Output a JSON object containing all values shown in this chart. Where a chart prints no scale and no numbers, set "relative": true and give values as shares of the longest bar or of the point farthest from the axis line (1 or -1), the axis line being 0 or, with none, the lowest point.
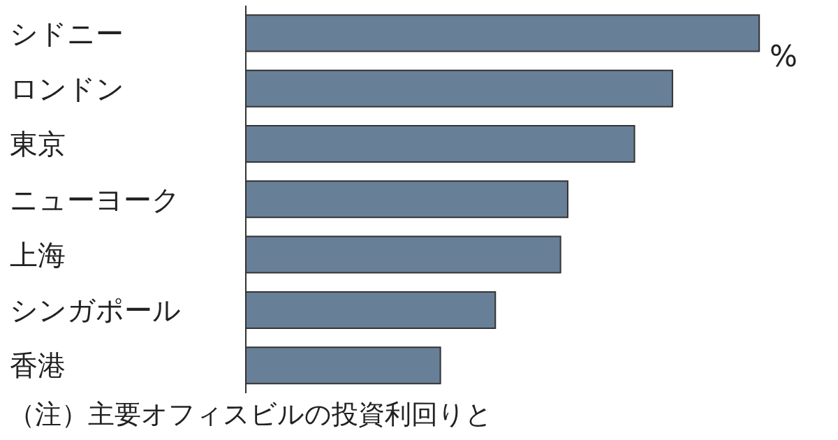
{
  "chart_data": {
    "type": "bar",
    "orientation": "horizontal",
    "relative": true,
    "categories": [
      "シドニー",
      "ロンドン",
      "東京",
      "ニューヨーク",
      "上海",
      "シンガポール",
      "香港"
    ],
    "values": [
      1,
      0.831,
      0.757,
      0.627,
      0.613,
      0.486,
      0.379
    ],
    "color": "#687f98",
    "xlabel": "%",
    "annotations": [
      "（注）主要オフィスビルの投資利回りと"
    ]
  }
}
